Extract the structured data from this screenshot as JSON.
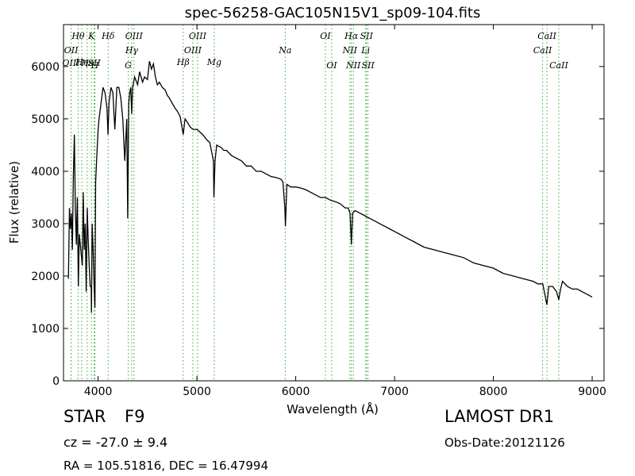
{
  "chart_data": {
    "type": "line",
    "title": "spec-56258-GAC105N15V1_sp09-104.fits",
    "xlabel": "Wavelength (Å)",
    "ylabel": "Flux (relative)",
    "xlim": [
      3650,
      9120
    ],
    "ylim": [
      0,
      6800
    ],
    "xticks": [
      4000,
      5000,
      6000,
      7000,
      8000,
      9000
    ],
    "yticks": [
      0,
      1000,
      2000,
      3000,
      4000,
      5000,
      6000
    ],
    "grid": false,
    "line_color": "#000000",
    "marker_color": "#33aa33",
    "spectrum": {
      "x": [
        3700,
        3710,
        3720,
        3730,
        3740,
        3750,
        3760,
        3770,
        3780,
        3790,
        3800,
        3810,
        3820,
        3830,
        3840,
        3850,
        3860,
        3870,
        3880,
        3890,
        3900,
        3910,
        3920,
        3930,
        3933,
        3940,
        3950,
        3960,
        3968,
        3975,
        3985,
        4000,
        4010,
        4030,
        4050,
        4070,
        4090,
        4101,
        4110,
        4130,
        4150,
        4170,
        4190,
        4210,
        4230,
        4250,
        4270,
        4290,
        4300,
        4310,
        4320,
        4330,
        4340,
        4350,
        4370,
        4400,
        4420,
        4450,
        4470,
        4500,
        4520,
        4540,
        4560,
        4580,
        4600,
        4620,
        4650,
        4680,
        4700,
        4720,
        4750,
        4780,
        4800,
        4830,
        4861,
        4880,
        4900,
        4930,
        4960,
        5000,
        5030,
        5060,
        5100,
        5130,
        5167,
        5172,
        5183,
        5200,
        5250,
        5270,
        5300,
        5350,
        5400,
        5450,
        5500,
        5550,
        5600,
        5650,
        5700,
        5750,
        5800,
        5850,
        5870,
        5890,
        5896,
        5910,
        5950,
        6000,
        6050,
        6100,
        6150,
        6200,
        6250,
        6300,
        6350,
        6400,
        6450,
        6500,
        6530,
        6550,
        6563,
        6575,
        6600,
        6650,
        6700,
        6750,
        6800,
        6850,
        6900,
        6950,
        7000,
        7100,
        7200,
        7300,
        7400,
        7500,
        7600,
        7700,
        7800,
        7900,
        8000,
        8100,
        8200,
        8300,
        8400,
        8450,
        8500,
        8542,
        8560,
        8600,
        8640,
        8662,
        8680,
        8700,
        8750,
        8800,
        8850,
        8900,
        8950,
        9000
      ],
      "y": [
        1950,
        3300,
        2900,
        3200,
        2500,
        3900,
        4700,
        3300,
        2600,
        3500,
        1800,
        2800,
        2600,
        2400,
        2200,
        3600,
        2500,
        3000,
        1700,
        3300,
        2700,
        2200,
        1800,
        1800,
        1300,
        3000,
        2500,
        1800,
        1400,
        3800,
        4200,
        4800,
        5000,
        5300,
        5600,
        5500,
        5200,
        4700,
        5300,
        5600,
        5500,
        4800,
        5600,
        5600,
        5400,
        5000,
        4200,
        5000,
        3100,
        5300,
        5500,
        5600,
        5100,
        5600,
        5800,
        5650,
        5900,
        5700,
        5800,
        5750,
        6100,
        5950,
        6050,
        5800,
        5650,
        5700,
        5600,
        5550,
        5450,
        5400,
        5300,
        5200,
        5150,
        5050,
        4700,
        5000,
        4950,
        4850,
        4800,
        4800,
        4750,
        4700,
        4600,
        4550,
        4200,
        3500,
        4200,
        4500,
        4450,
        4400,
        4400,
        4300,
        4250,
        4200,
        4100,
        4100,
        4000,
        4000,
        3950,
        3900,
        3880,
        3850,
        3800,
        3300,
        2950,
        3750,
        3700,
        3700,
        3680,
        3650,
        3600,
        3550,
        3500,
        3500,
        3450,
        3420,
        3380,
        3300,
        3300,
        3200,
        2600,
        3200,
        3250,
        3200,
        3150,
        3100,
        3050,
        3000,
        2950,
        2900,
        2850,
        2750,
        2650,
        2550,
        2500,
        2450,
        2400,
        2350,
        2250,
        2200,
        2150,
        2050,
        2000,
        1950,
        1900,
        1850,
        1850,
        1450,
        1800,
        1800,
        1700,
        1550,
        1750,
        1900,
        1800,
        1750,
        1750,
        1700,
        1650,
        1600
      ]
    },
    "lines": [
      {
        "label": "OII",
        "x": 3727,
        "row": 2
      },
      {
        "label": "OIII",
        "x": 3727,
        "row": 3
      },
      {
        "label": "Hθ",
        "x": 3798,
        "row": 1
      },
      {
        "label": "Hη",
        "x": 3835,
        "row": 4
      },
      {
        "label": "Hε",
        "x": 3889,
        "row": 3
      },
      {
        "label": "K",
        "x": 3934,
        "row": 1
      },
      {
        "label": "SII",
        "x": 3960,
        "row": 3
      },
      {
        "label": "H",
        "x": 3968,
        "row": 5
      },
      {
        "label": "Hδ",
        "x": 4102,
        "row": 1
      },
      {
        "label": "G",
        "x": 4305,
        "row": 5
      },
      {
        "label": "OIII",
        "x": 4363,
        "row": 1
      },
      {
        "label": "Hγ",
        "x": 4340,
        "row": 2
      },
      {
        "label": "Hβ",
        "x": 4861,
        "row": 4
      },
      {
        "label": "OIII",
        "x": 4959,
        "row": 2
      },
      {
        "label": "OIII",
        "x": 5007,
        "row": 1
      },
      {
        "label": "Mg",
        "x": 5175,
        "row": 4
      },
      {
        "label": "Na",
        "x": 5894,
        "row": 3
      },
      {
        "label": "OI",
        "x": 6300,
        "row": 1
      },
      {
        "label": "OI",
        "x": 6364,
        "row": 5
      },
      {
        "label": "NII",
        "x": 6548,
        "row": 3
      },
      {
        "label": "Hα",
        "x": 6563,
        "row": 1
      },
      {
        "label": "NII",
        "x": 6583,
        "row": 5
      },
      {
        "label": "Li",
        "x": 6708,
        "row": 3
      },
      {
        "label": "SII",
        "x": 6716,
        "row": 1
      },
      {
        "label": "SII",
        "x": 6731,
        "row": 5
      },
      {
        "label": "CaII",
        "x": 8498,
        "row": 2
      },
      {
        "label": "CaII",
        "x": 8542,
        "row": 1
      },
      {
        "label": "CaII",
        "x": 8662,
        "row": 5
      }
    ]
  },
  "info": {
    "object_class": "STAR",
    "subclass": "F9",
    "survey": "LAMOST DR1",
    "cz": "cz = -27.0 ± 9.4",
    "obs_date": "Obs-Date:20121126",
    "radec": "RA = 105.51816, DEC = 16.47994"
  }
}
